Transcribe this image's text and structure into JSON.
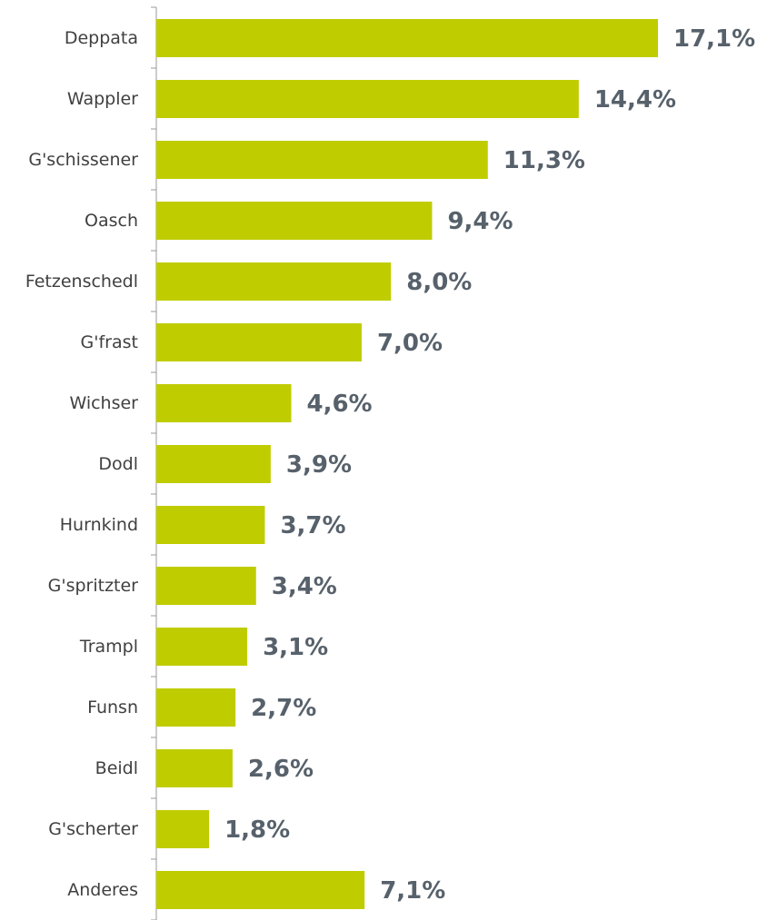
{
  "chart_data": {
    "type": "bar",
    "orientation": "horizontal",
    "categories": [
      "Deppata",
      "Wappler",
      "G'schissener",
      "Oasch",
      "Fetzenschedl",
      "G'frast",
      "Wichser",
      "Dodl",
      "Hurnkind",
      "G'spritzter",
      "Trampl",
      "Funsn",
      "Beidl",
      "G'scherter",
      "Anderes"
    ],
    "values": [
      17.1,
      14.4,
      11.3,
      9.4,
      8.0,
      7.0,
      4.6,
      3.9,
      3.7,
      3.4,
      3.1,
      2.7,
      2.6,
      1.8,
      7.1
    ],
    "value_labels": [
      "17,1%",
      "14,4%",
      "11,3%",
      "9,4%",
      "8,0%",
      "7,0%",
      "4,6%",
      "3,9%",
      "3,7%",
      "3,4%",
      "3,1%",
      "2,7%",
      "2,6%",
      "1,8%",
      "7,1%"
    ],
    "unit": "%",
    "xlim": [
      0,
      17.1
    ],
    "grid": false,
    "bar_color": "#bfcc00"
  }
}
